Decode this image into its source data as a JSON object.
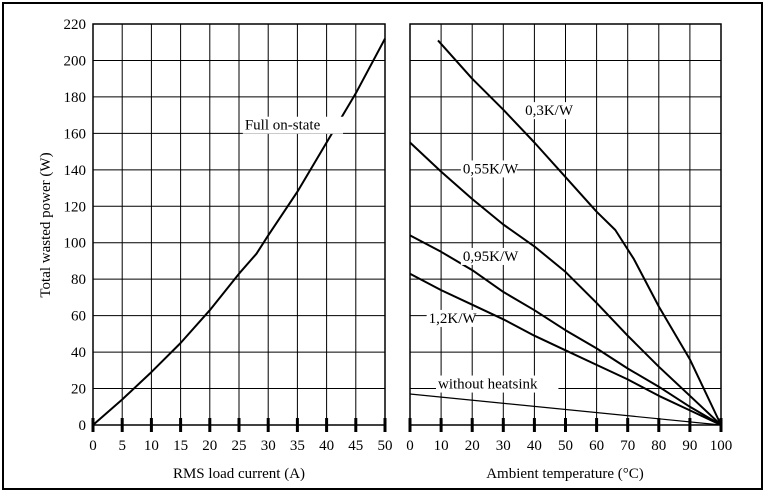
{
  "chart_data": [
    {
      "type": "line",
      "xlabel": "RMS load current (A)",
      "ylabel": "Total wasted power (W)",
      "xlim": [
        0,
        50
      ],
      "ylim": [
        0,
        220
      ],
      "xticks": [
        0,
        5,
        10,
        15,
        20,
        25,
        30,
        35,
        40,
        45,
        50
      ],
      "yticks": [
        0,
        20,
        40,
        60,
        80,
        100,
        120,
        140,
        160,
        180,
        200,
        220
      ],
      "grid": true,
      "series": [
        {
          "name": "Full on-state",
          "x": [
            0,
            5,
            10,
            15,
            20,
            25,
            28,
            30,
            35,
            40,
            45,
            50
          ],
          "y": [
            0,
            14,
            29,
            45,
            63,
            83,
            94,
            104,
            128,
            155,
            182,
            212
          ]
        }
      ]
    },
    {
      "type": "line",
      "xlabel": "Ambient temperature (°C)",
      "xlim": [
        0,
        100
      ],
      "ylim": [
        0,
        220
      ],
      "xticks": [
        0,
        10,
        20,
        30,
        40,
        50,
        60,
        70,
        80,
        90,
        100
      ],
      "grid": true,
      "series": [
        {
          "name": "0,3K/W",
          "x": [
            9,
            20,
            30,
            40,
            50,
            60,
            66,
            72,
            80,
            90,
            100
          ],
          "y": [
            211,
            190,
            173,
            155,
            136,
            117,
            107,
            91,
            65,
            36,
            0
          ]
        },
        {
          "name": "0,55K/W",
          "x": [
            0,
            10,
            20,
            30,
            40,
            50,
            60,
            70,
            80,
            90,
            100
          ],
          "y": [
            155,
            139,
            124,
            110,
            98,
            84,
            67,
            49,
            32,
            16,
            0
          ]
        },
        {
          "name": "0,95K/W",
          "x": [
            0,
            10,
            20,
            30,
            40,
            50,
            60,
            70,
            80,
            90,
            100
          ],
          "y": [
            104,
            95,
            85,
            73,
            63,
            52,
            42,
            31,
            21,
            10,
            0
          ]
        },
        {
          "name": "1,2K/W",
          "x": [
            0,
            10,
            20,
            30,
            40,
            50,
            60,
            70,
            80,
            90,
            100
          ],
          "y": [
            83,
            74,
            66,
            58,
            49,
            41,
            33,
            25,
            16,
            8,
            0
          ]
        },
        {
          "name": "without heatsink",
          "x": [
            0,
            100
          ],
          "y": [
            17,
            0
          ]
        }
      ]
    }
  ]
}
